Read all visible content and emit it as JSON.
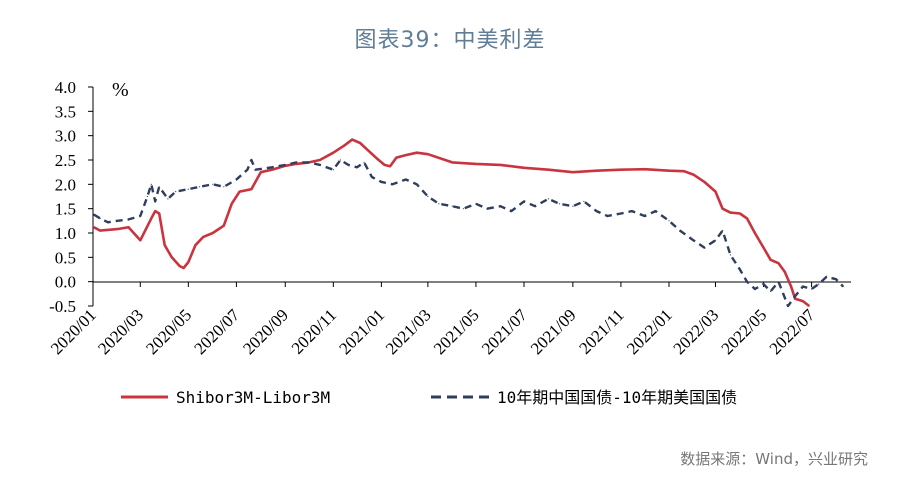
{
  "figure_title": "图表39：中美利差",
  "source": "数据来源：Wind，兴业研究",
  "colors": {
    "red": "#c9343f",
    "navy": "#2f3e5e",
    "title": "#5f7d97"
  },
  "chart_data": {
    "type": "line",
    "title": "",
    "xlabel": "",
    "ylabel": "%",
    "ylim": [
      -0.5,
      4.0
    ],
    "yticks": [
      "4.0",
      "3.5",
      "3.0",
      "2.5",
      "2.0",
      "1.5",
      "1.0",
      "0.5",
      "0.0",
      "-0.5"
    ],
    "xlim": [
      "2020-01-01",
      "2022-08-20"
    ],
    "xtick_dates": [
      "2020-01-01",
      "2020-03-01",
      "2020-05-01",
      "2020-07-01",
      "2020-09-01",
      "2020-11-01",
      "2021-01-01",
      "2021-03-01",
      "2021-05-01",
      "2021-07-01",
      "2021-09-01",
      "2021-11-01",
      "2022-01-01",
      "2022-03-01",
      "2022-05-01",
      "2022-07-01"
    ],
    "xtick_labels": [
      "2020/01",
      "2020/03",
      "2020/05",
      "2020/07",
      "2020/09",
      "2020/11",
      "2021/01",
      "2021/03",
      "2021/05",
      "2021/07",
      "2021/09",
      "2021/11",
      "2022/01",
      "2022/03",
      "2022/05",
      "2022/07"
    ],
    "legend_position": "bottom",
    "series": [
      {
        "name": "Shibor3M-Libor3M",
        "color": "#c9343f",
        "style": "solid",
        "points": [
          [
            "2020-01-02",
            1.12
          ],
          [
            "2020-01-10",
            1.05
          ],
          [
            "2020-02-01",
            1.08
          ],
          [
            "2020-02-15",
            1.12
          ],
          [
            "2020-03-01",
            0.85
          ],
          [
            "2020-03-15",
            1.3
          ],
          [
            "2020-03-20",
            1.45
          ],
          [
            "2020-03-25",
            1.4
          ],
          [
            "2020-04-01",
            0.75
          ],
          [
            "2020-04-10",
            0.5
          ],
          [
            "2020-04-20",
            0.32
          ],
          [
            "2020-04-25",
            0.28
          ],
          [
            "2020-05-01",
            0.4
          ],
          [
            "2020-05-10",
            0.75
          ],
          [
            "2020-05-20",
            0.92
          ],
          [
            "2020-06-01",
            1.0
          ],
          [
            "2020-06-15",
            1.15
          ],
          [
            "2020-06-25",
            1.6
          ],
          [
            "2020-07-05",
            1.85
          ],
          [
            "2020-07-20",
            1.9
          ],
          [
            "2020-08-01",
            2.25
          ],
          [
            "2020-08-15",
            2.3
          ],
          [
            "2020-09-01",
            2.38
          ],
          [
            "2020-09-15",
            2.42
          ],
          [
            "2020-10-01",
            2.45
          ],
          [
            "2020-10-15",
            2.5
          ],
          [
            "2020-11-01",
            2.65
          ],
          [
            "2020-11-15",
            2.8
          ],
          [
            "2020-11-25",
            2.92
          ],
          [
            "2020-12-05",
            2.85
          ],
          [
            "2020-12-15",
            2.7
          ],
          [
            "2020-12-25",
            2.55
          ],
          [
            "2021-01-05",
            2.4
          ],
          [
            "2021-01-12",
            2.37
          ],
          [
            "2021-01-20",
            2.55
          ],
          [
            "2021-02-01",
            2.6
          ],
          [
            "2021-02-15",
            2.65
          ],
          [
            "2021-03-01",
            2.62
          ],
          [
            "2021-04-01",
            2.45
          ],
          [
            "2021-05-01",
            2.42
          ],
          [
            "2021-06-01",
            2.4
          ],
          [
            "2021-07-01",
            2.34
          ],
          [
            "2021-08-01",
            2.3
          ],
          [
            "2021-09-01",
            2.25
          ],
          [
            "2021-10-01",
            2.28
          ],
          [
            "2021-11-01",
            2.3
          ],
          [
            "2021-12-01",
            2.31
          ],
          [
            "2022-01-01",
            2.28
          ],
          [
            "2022-01-20",
            2.27
          ],
          [
            "2022-02-01",
            2.2
          ],
          [
            "2022-02-15",
            2.05
          ],
          [
            "2022-03-01",
            1.85
          ],
          [
            "2022-03-10",
            1.5
          ],
          [
            "2022-03-20",
            1.42
          ],
          [
            "2022-04-01",
            1.4
          ],
          [
            "2022-04-10",
            1.3
          ],
          [
            "2022-04-20",
            1.0
          ],
          [
            "2022-05-01",
            0.7
          ],
          [
            "2022-05-10",
            0.45
          ],
          [
            "2022-05-20",
            0.38
          ],
          [
            "2022-05-28",
            0.2
          ],
          [
            "2022-06-05",
            -0.1
          ],
          [
            "2022-06-10",
            -0.35
          ],
          [
            "2022-06-20",
            -0.4
          ],
          [
            "2022-06-28",
            -0.5
          ]
        ]
      },
      {
        "name": "10年期中国国债-10年期美国国债",
        "color": "#2f3e5e",
        "style": "dashed",
        "points": [
          [
            "2020-01-02",
            1.38
          ],
          [
            "2020-01-10",
            1.3
          ],
          [
            "2020-01-20",
            1.22
          ],
          [
            "2020-02-01",
            1.25
          ],
          [
            "2020-02-15",
            1.28
          ],
          [
            "2020-03-01",
            1.35
          ],
          [
            "2020-03-10",
            1.75
          ],
          [
            "2020-03-15",
            2.0
          ],
          [
            "2020-03-20",
            1.65
          ],
          [
            "2020-03-25",
            1.95
          ],
          [
            "2020-04-05",
            1.7
          ],
          [
            "2020-04-15",
            1.85
          ],
          [
            "2020-05-01",
            1.9
          ],
          [
            "2020-05-15",
            1.95
          ],
          [
            "2020-06-01",
            2.0
          ],
          [
            "2020-06-15",
            1.95
          ],
          [
            "2020-07-01",
            2.1
          ],
          [
            "2020-07-15",
            2.3
          ],
          [
            "2020-07-20",
            2.5
          ],
          [
            "2020-07-25",
            2.3
          ],
          [
            "2020-08-15",
            2.35
          ],
          [
            "2020-09-01",
            2.4
          ],
          [
            "2020-09-15",
            2.45
          ],
          [
            "2020-10-01",
            2.45
          ],
          [
            "2020-10-15",
            2.4
          ],
          [
            "2020-11-01",
            2.3
          ],
          [
            "2020-11-10",
            2.5
          ],
          [
            "2020-11-20",
            2.4
          ],
          [
            "2020-12-01",
            2.35
          ],
          [
            "2020-12-10",
            2.45
          ],
          [
            "2020-12-20",
            2.15
          ],
          [
            "2021-01-01",
            2.05
          ],
          [
            "2021-01-15",
            2.0
          ],
          [
            "2021-02-01",
            2.1
          ],
          [
            "2021-02-15",
            2.0
          ],
          [
            "2021-03-01",
            1.75
          ],
          [
            "2021-03-15",
            1.6
          ],
          [
            "2021-04-01",
            1.55
          ],
          [
            "2021-04-15",
            1.5
          ],
          [
            "2021-05-01",
            1.6
          ],
          [
            "2021-05-15",
            1.5
          ],
          [
            "2021-06-01",
            1.55
          ],
          [
            "2021-06-15",
            1.45
          ],
          [
            "2021-07-01",
            1.65
          ],
          [
            "2021-07-15",
            1.55
          ],
          [
            "2021-08-01",
            1.7
          ],
          [
            "2021-08-15",
            1.6
          ],
          [
            "2021-09-01",
            1.55
          ],
          [
            "2021-09-15",
            1.65
          ],
          [
            "2021-10-01",
            1.45
          ],
          [
            "2021-10-15",
            1.35
          ],
          [
            "2021-11-01",
            1.4
          ],
          [
            "2021-11-15",
            1.45
          ],
          [
            "2021-12-01",
            1.35
          ],
          [
            "2021-12-15",
            1.45
          ],
          [
            "2022-01-01",
            1.25
          ],
          [
            "2022-01-15",
            1.05
          ],
          [
            "2022-02-01",
            0.85
          ],
          [
            "2022-02-15",
            0.7
          ],
          [
            "2022-03-01",
            0.85
          ],
          [
            "2022-03-10",
            1.05
          ],
          [
            "2022-03-20",
            0.55
          ],
          [
            "2022-04-01",
            0.25
          ],
          [
            "2022-04-10",
            0.0
          ],
          [
            "2022-04-20",
            -0.15
          ],
          [
            "2022-05-01",
            -0.05
          ],
          [
            "2022-05-10",
            -0.2
          ],
          [
            "2022-05-20",
            0.0
          ],
          [
            "2022-06-01",
            -0.5
          ],
          [
            "2022-06-10",
            -0.3
          ],
          [
            "2022-06-20",
            -0.1
          ],
          [
            "2022-07-01",
            -0.15
          ],
          [
            "2022-07-10",
            -0.05
          ],
          [
            "2022-07-20",
            0.1
          ],
          [
            "2022-08-01",
            0.05
          ],
          [
            "2022-08-10",
            -0.1
          ]
        ]
      }
    ]
  }
}
